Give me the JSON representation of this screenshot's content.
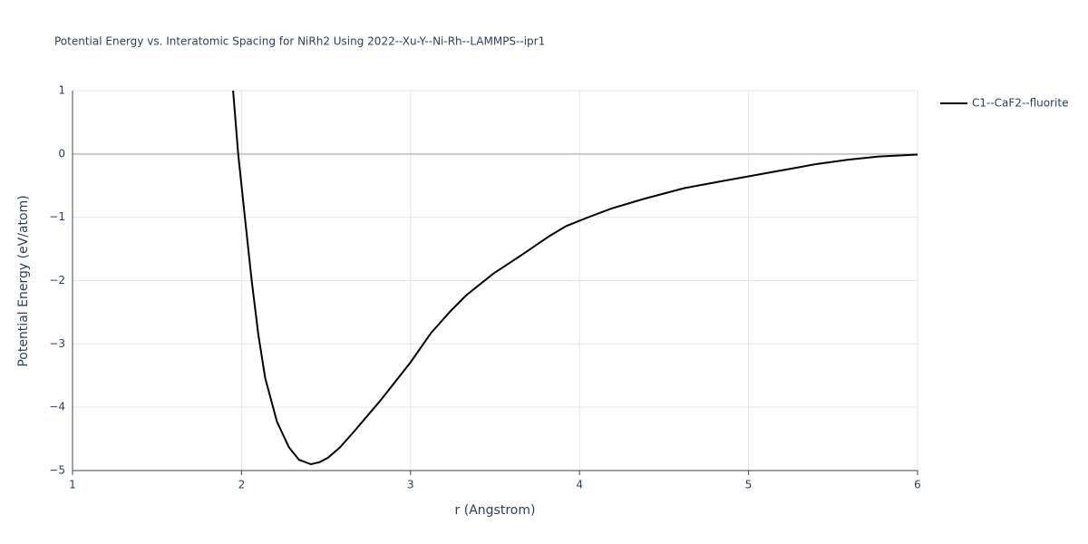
{
  "chart_data": {
    "type": "line",
    "title": "Potential Energy vs. Interatomic Spacing for NiRh2 Using 2022--Xu-Y--Ni-Rh--LAMMPS--ipr1",
    "x_label": "r (Angstrom)",
    "y_label": "Potential Energy (eV/atom)",
    "x": [
      1.95,
      1.98,
      2.02,
      2.06,
      2.1,
      2.14,
      2.21,
      2.28,
      2.34,
      2.41,
      2.46,
      2.51,
      2.58,
      2.67,
      2.82,
      3.0,
      3.12,
      3.23,
      3.33,
      3.49,
      3.66,
      3.82,
      3.92,
      4.06,
      4.19,
      4.38,
      4.62,
      4.84,
      5.13,
      5.4,
      5.59,
      5.77,
      6.0
    ],
    "series": [
      {
        "name": "C1--CaF2--fluorite",
        "color": "#000000",
        "values": [
          1,
          0,
          -1,
          -2,
          -2.86,
          -3.54,
          -4.23,
          -4.63,
          -4.83,
          -4.9,
          -4.87,
          -4.8,
          -4.64,
          -4.37,
          -3.9,
          -3.29,
          -2.83,
          -2.5,
          -2.23,
          -1.89,
          -1.59,
          -1.3,
          -1.14,
          -0.99,
          -0.86,
          -0.71,
          -0.54,
          -0.43,
          -0.29,
          -0.16,
          -0.09,
          -0.04,
          -0.01
        ]
      }
    ],
    "xlim": [
      1,
      6
    ],
    "ylim": [
      -5,
      1
    ],
    "xticks": [
      1,
      2,
      3,
      4,
      5,
      6
    ],
    "yticks": [
      {
        "value": -5,
        "label": "−5"
      },
      {
        "value": -4,
        "label": "−4"
      },
      {
        "value": -3,
        "label": "−3"
      },
      {
        "value": -2,
        "label": "−2"
      },
      {
        "value": -1,
        "label": "−1"
      },
      0,
      1
    ],
    "grid": true,
    "zeroline": true,
    "legend": "right"
  }
}
